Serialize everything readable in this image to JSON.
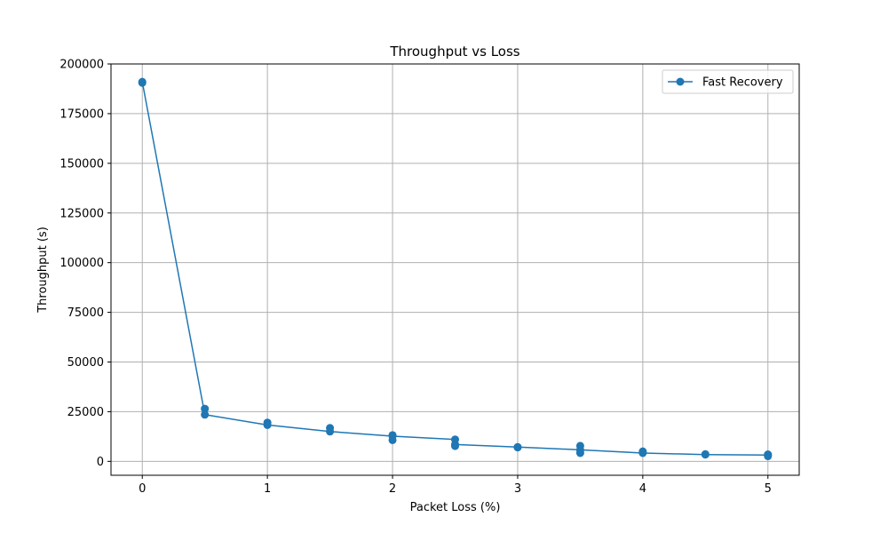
{
  "chart_data": {
    "type": "line",
    "title": "Throughput vs Loss",
    "xlabel": "Packet Loss (%)",
    "ylabel": "Throughput (s)",
    "xlim": [
      -0.25,
      5.25
    ],
    "ylim": [
      -7000,
      200000
    ],
    "xticks": [
      0,
      1,
      2,
      3,
      4,
      5
    ],
    "yticks": [
      0,
      25000,
      50000,
      75000,
      100000,
      125000,
      150000,
      175000,
      200000
    ],
    "grid": true,
    "legend_position": "top-right",
    "series": [
      {
        "name": "Fast Recovery",
        "color": "#1f77b4",
        "line": [
          [
            0,
            191000
          ],
          [
            0.5,
            23500
          ],
          [
            1,
            18300
          ],
          [
            1.5,
            15000
          ],
          [
            2,
            12700
          ],
          [
            2.5,
            11000
          ],
          [
            2.5,
            8500
          ],
          [
            3,
            7200
          ],
          [
            3.5,
            5800
          ],
          [
            4,
            4200
          ],
          [
            4.5,
            3400
          ],
          [
            5,
            3200
          ]
        ],
        "points": [
          [
            0,
            191000
          ],
          [
            0,
            190500
          ],
          [
            0.5,
            26500
          ],
          [
            0.5,
            23500
          ],
          [
            1,
            19500
          ],
          [
            1,
            18300
          ],
          [
            1.5,
            16800
          ],
          [
            1.5,
            15000
          ],
          [
            2,
            13200
          ],
          [
            2,
            12700
          ],
          [
            2,
            10700
          ],
          [
            2.5,
            11000
          ],
          [
            2.5,
            8500
          ],
          [
            2.5,
            7700
          ],
          [
            3,
            7200
          ],
          [
            3,
            7000
          ],
          [
            3.5,
            7800
          ],
          [
            3.5,
            5800
          ],
          [
            3.5,
            4200
          ],
          [
            4,
            5000
          ],
          [
            4,
            4200
          ],
          [
            4.5,
            3600
          ],
          [
            4.5,
            3400
          ],
          [
            5,
            3500
          ],
          [
            5,
            3200
          ],
          [
            5,
            2600
          ]
        ]
      }
    ]
  }
}
